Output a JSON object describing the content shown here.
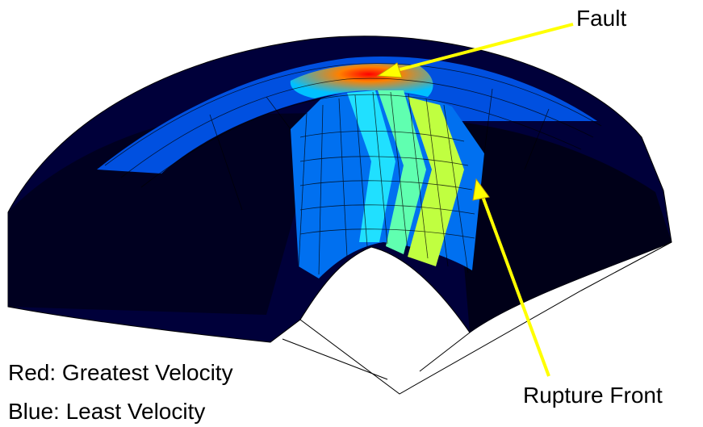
{
  "labels": {
    "fault": "Fault",
    "rupture_front": "Rupture Front"
  },
  "legend": {
    "red": "Red: Greatest Velocity",
    "blue": "Blue: Least Velocity"
  },
  "colors": {
    "arrow": "#ffff00",
    "mesh_line": "#000000",
    "background": "#ffffff",
    "colormap": [
      "#000060",
      "#0000b0",
      "#0040ff",
      "#0090ff",
      "#00e0ff",
      "#80ff80",
      "#ffff00",
      "#ff8000",
      "#ff0000"
    ]
  },
  "icons": {
    "fault_pointer": "yellow-arrow-icon",
    "rupture_pointer": "yellow-arrow-icon"
  }
}
